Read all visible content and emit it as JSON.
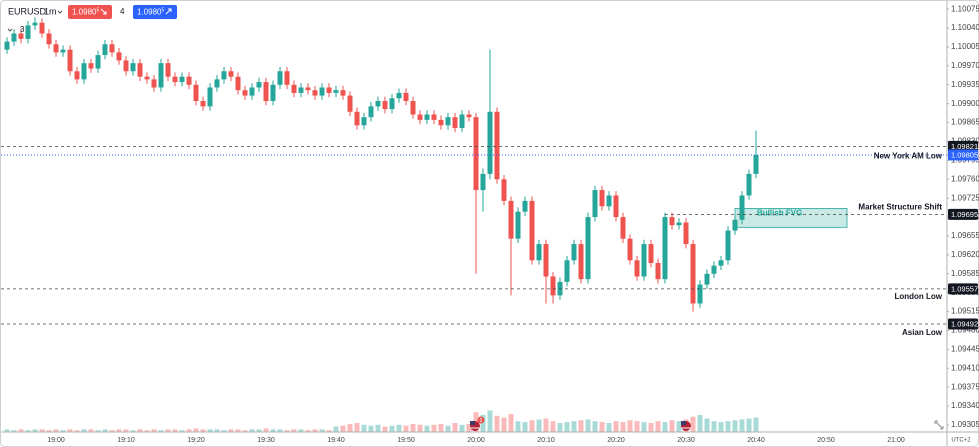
{
  "header": {
    "symbol": "EURUSD",
    "interval": "1m",
    "sell": "1.0980",
    "sell_pip": "5",
    "spread": "4",
    "buy": "1.0980",
    "buy_pip": "5",
    "indicators": "3"
  },
  "footer": {
    "timezone": "UTC+2",
    "event_badge": "2"
  },
  "chart_data": {
    "type": "candlestick",
    "categories": [
      null,
      null,
      null,
      null,
      null,
      null,
      null,
      "19:00",
      null,
      null,
      null,
      null,
      null,
      null,
      null,
      null,
      null,
      "19:10",
      null,
      null,
      null,
      null,
      null,
      null,
      null,
      null,
      null,
      "19:20",
      null,
      null,
      null,
      null,
      null,
      null,
      null,
      null,
      null,
      "19:30",
      null,
      null,
      null,
      null,
      null,
      null,
      null,
      null,
      null,
      "19:40",
      null,
      null,
      null,
      null,
      null,
      null,
      null,
      null,
      null,
      "19:50",
      null,
      null,
      null,
      null,
      null,
      null,
      null,
      null,
      null,
      "20:00",
      null,
      null,
      null,
      null,
      null,
      null,
      null,
      null,
      null,
      "20:10",
      null,
      null,
      null,
      null,
      null,
      null,
      null,
      null,
      null,
      "20:20",
      null,
      null,
      null,
      null,
      null,
      null,
      null,
      null,
      null,
      "20:30",
      null,
      null,
      null,
      null,
      null,
      null,
      null,
      null,
      null,
      "20:40",
      null,
      null,
      null,
      null,
      null,
      null,
      null,
      null,
      null,
      "20:50",
      null,
      null,
      null,
      null,
      null,
      null,
      null,
      null,
      null,
      "21:00"
    ],
    "open": [
      1.1,
      1.10015,
      1.1003,
      1.1002,
      1.10045,
      1.1005,
      1.1003,
      1.1001,
      1.09995,
      1.1,
      1.0996,
      1.09945,
      1.09975,
      1.09965,
      1.0999,
      1.1001,
      1.09995,
      1.0998,
      1.0996,
      1.09975,
      1.0995,
      1.09945,
      1.0993,
      1.09975,
      1.0995,
      1.0994,
      1.0995,
      1.09935,
      1.09905,
      1.09895,
      1.0993,
      1.09945,
      1.0996,
      1.0995,
      1.09925,
      1.09915,
      1.0993,
      1.0994,
      1.09905,
      1.09935,
      1.0996,
      1.09935,
      1.0992,
      1.0993,
      1.09925,
      1.09915,
      1.0993,
      1.0992,
      1.09925,
      1.09915,
      1.09885,
      1.0986,
      1.09875,
      1.09895,
      1.09905,
      1.0989,
      1.0991,
      1.0992,
      1.09905,
      1.0988,
      1.0987,
      1.0988,
      1.0987,
      1.0986,
      1.09875,
      1.09855,
      1.0988,
      1.09875,
      1.0974,
      1.0977,
      1.09885,
      1.0976,
      1.0972,
      1.0965,
      1.097,
      1.0972,
      1.0961,
      1.0964,
      1.0958,
      1.09545,
      1.0957,
      1.0961,
      1.0964,
      1.09575,
      1.0969,
      1.0974,
      1.0971,
      1.0973,
      1.0969,
      1.0965,
      1.0961,
      1.0958,
      1.0964,
      1.09605,
      1.09575,
      1.0969,
      1.09675,
      1.0968,
      1.0964,
      1.0953,
      1.09565,
      1.09585,
      1.096,
      1.0961,
      1.09665,
      1.09685,
      1.0973,
      1.0977,
      null,
      null,
      null,
      null,
      null,
      null,
      null,
      null,
      null,
      null,
      null,
      null,
      null,
      null,
      null,
      null,
      null,
      null,
      null,
      null
    ],
    "high": [
      1.10023,
      1.10038,
      1.10038,
      1.10053,
      1.1006,
      1.10058,
      1.10038,
      1.10018,
      1.10008,
      1.10008,
      1.09968,
      1.09983,
      1.09983,
      1.09998,
      1.10018,
      1.10018,
      1.10003,
      1.09988,
      1.09983,
      1.09983,
      1.09958,
      1.09953,
      1.09983,
      1.09983,
      1.09958,
      1.09958,
      1.09958,
      1.09943,
      1.09913,
      1.09938,
      1.09953,
      1.09968,
      1.09968,
      1.09958,
      1.09933,
      1.09938,
      1.09948,
      1.09948,
      1.09943,
      1.09968,
      1.09968,
      1.09943,
      1.09938,
      1.09938,
      1.09933,
      1.09938,
      1.09938,
      1.09933,
      1.09933,
      1.09923,
      1.09893,
      1.09883,
      1.09903,
      1.09913,
      1.09913,
      1.09918,
      1.09928,
      1.09928,
      1.09913,
      1.09888,
      1.09888,
      1.09888,
      1.09878,
      1.09883,
      1.09883,
      1.09888,
      1.09888,
      1.09883,
      1.0978,
      1.1,
      1.09893,
      1.09768,
      1.09728,
      1.09708,
      1.09728,
      1.09728,
      1.09648,
      1.09648,
      1.09588,
      1.09578,
      1.09618,
      1.09648,
      1.09648,
      1.09698,
      1.09748,
      1.09748,
      1.09738,
      1.09738,
      1.09698,
      1.09658,
      1.09618,
      1.09648,
      1.09648,
      1.09613,
      1.09698,
      1.09698,
      1.09688,
      1.09688,
      1.09648,
      1.09573,
      1.09593,
      1.09608,
      1.09618,
      1.09673,
      1.09693,
      1.09738,
      1.09778,
      1.0985,
      null,
      null,
      null,
      null,
      null,
      null,
      null,
      null,
      null,
      null,
      null,
      null,
      null,
      null,
      null,
      null,
      null,
      null,
      null,
      null
    ],
    "low": [
      1.09992,
      1.10007,
      1.10012,
      1.10012,
      1.10037,
      1.10022,
      1.10002,
      1.09987,
      1.09987,
      1.09952,
      1.09937,
      1.09937,
      1.09957,
      1.09957,
      1.09982,
      1.09987,
      1.09972,
      1.09952,
      1.09952,
      1.09942,
      1.09937,
      1.09922,
      1.09922,
      1.09942,
      1.09932,
      1.09932,
      1.09927,
      1.09897,
      1.09887,
      1.09887,
      1.09922,
      1.09937,
      1.09942,
      1.09917,
      1.09907,
      1.09907,
      1.09922,
      1.09897,
      1.09897,
      1.09927,
      1.09927,
      1.09912,
      1.09912,
      1.09917,
      1.09907,
      1.09907,
      1.09912,
      1.09912,
      1.09907,
      1.09877,
      1.09852,
      1.09852,
      1.09867,
      1.09887,
      1.09882,
      1.09882,
      1.09902,
      1.09897,
      1.09872,
      1.09862,
      1.09862,
      1.09862,
      1.09852,
      1.09852,
      1.09847,
      1.09847,
      1.09867,
      1.09585,
      1.097,
      1.0976,
      1.09752,
      1.09712,
      1.09545,
      1.09642,
      1.09692,
      1.09602,
      1.09602,
      1.0953,
      1.0953,
      1.09537,
      1.09562,
      1.09602,
      1.09567,
      1.09567,
      1.09682,
      1.09702,
      1.09702,
      1.09682,
      1.09642,
      1.09602,
      1.09572,
      1.09572,
      1.09597,
      1.09567,
      1.09567,
      1.09667,
      1.09667,
      1.09632,
      1.09515,
      1.09522,
      1.09557,
      1.09577,
      1.09592,
      1.09602,
      1.09657,
      1.09677,
      1.09722,
      1.09762,
      null,
      null,
      null,
      null,
      null,
      null,
      null,
      null,
      null,
      null,
      null,
      null,
      null,
      null,
      null,
      null,
      null,
      null,
      null,
      null
    ],
    "close": [
      1.10015,
      1.1003,
      1.1002,
      1.10045,
      1.1005,
      1.1003,
      1.1001,
      1.09995,
      1.1,
      1.0996,
      1.09945,
      1.09975,
      1.09965,
      1.0999,
      1.1001,
      1.09995,
      1.0998,
      1.0996,
      1.09975,
      1.0995,
      1.09945,
      1.0993,
      1.09975,
      1.0995,
      1.0994,
      1.0995,
      1.09935,
      1.09905,
      1.09895,
      1.0993,
      1.09945,
      1.0996,
      1.0995,
      1.09925,
      1.09915,
      1.0993,
      1.0994,
      1.09905,
      1.09935,
      1.0996,
      1.09935,
      1.0992,
      1.0993,
      1.09925,
      1.09915,
      1.0993,
      1.0992,
      1.09925,
      1.09915,
      1.09885,
      1.0986,
      1.09875,
      1.09895,
      1.09905,
      1.0989,
      1.0991,
      1.0992,
      1.09905,
      1.0988,
      1.0987,
      1.0988,
      1.0987,
      1.0986,
      1.09875,
      1.09855,
      1.0988,
      1.09875,
      1.0974,
      1.0977,
      1.09885,
      1.0976,
      1.0972,
      1.0965,
      1.097,
      1.0972,
      1.0961,
      1.0964,
      1.0958,
      1.09545,
      1.0957,
      1.0961,
      1.0964,
      1.09575,
      1.0969,
      1.0974,
      1.0971,
      1.0973,
      1.0969,
      1.0965,
      1.0961,
      1.0958,
      1.0964,
      1.09605,
      1.09575,
      1.0969,
      1.09675,
      1.0968,
      1.0964,
      1.0953,
      1.09565,
      1.09585,
      1.096,
      1.0961,
      1.09665,
      1.09685,
      1.0973,
      1.0977,
      1.09805,
      null,
      null,
      null,
      null,
      null,
      null,
      null,
      null,
      null,
      null,
      null,
      null,
      null,
      null,
      null,
      null,
      null,
      null,
      null,
      null
    ],
    "volume": [
      3,
      2,
      3,
      2,
      3,
      3,
      2,
      3,
      2,
      3,
      2,
      3,
      3,
      2,
      3,
      2,
      3,
      3,
      2,
      3,
      2,
      3,
      2,
      3,
      3,
      2,
      3,
      4,
      3,
      3,
      3,
      2,
      3,
      3,
      2,
      3,
      3,
      4,
      3,
      3,
      2,
      3,
      3,
      2,
      3,
      3,
      2,
      6,
      7,
      9,
      10,
      8,
      7,
      8,
      6,
      7,
      8,
      7,
      9,
      8,
      7,
      8,
      9,
      7,
      10,
      8,
      9,
      22,
      19,
      24,
      18,
      16,
      20,
      12,
      11,
      13,
      14,
      15,
      12,
      10,
      11,
      12,
      13,
      14,
      12,
      11,
      10,
      12,
      11,
      13,
      12,
      11,
      10,
      12,
      11,
      13,
      12,
      14,
      17,
      19,
      15,
      12,
      11,
      12,
      13,
      14,
      15,
      16,
      null,
      null,
      null,
      null,
      null,
      null,
      null,
      null,
      null,
      null,
      null,
      null,
      null,
      null,
      null,
      null,
      null,
      null,
      null,
      null
    ],
    "up_color": "#26a69a",
    "down_color": "#ef5350",
    "ylim": [
      1.09292,
      1.10092
    ],
    "yticks": [
      1.10075,
      {
        "value": 1.1004,
        "label": "1.10040"
      },
      1.10005,
      {
        "value": 1.0997,
        "label": "1.09970"
      },
      1.09935,
      {
        "value": 1.099,
        "label": "1.09900"
      },
      1.09865,
      {
        "value": 1.0983,
        "label": "1.09830"
      },
      1.09795,
      {
        "value": 1.0976,
        "label": "1.09760"
      },
      1.09725,
      {
        "value": 1.0969,
        "label": "1.09690"
      },
      1.09655,
      {
        "value": 1.0962,
        "label": "1.09620"
      },
      1.09585,
      {
        "value": 1.0955,
        "label": "1.09550"
      },
      1.09515,
      {
        "value": 1.0948,
        "label": "1.09480"
      },
      1.09445,
      {
        "value": 1.0941,
        "label": "1.09410"
      },
      1.09375,
      {
        "value": 1.0934,
        "label": "1.09340"
      },
      1.09305
    ],
    "grid": false,
    "levels": [
      {
        "name": "New York AM Low",
        "value": 1.09821
      },
      {
        "name": "Market Structure Shift",
        "value": 1.09695
      },
      {
        "name": "London Low",
        "value": 1.09557
      },
      {
        "name": "Asian Low",
        "value": 1.09492
      }
    ],
    "last_price": 1.09805,
    "last_price_color": "#2962ff",
    "fvg": {
      "label": "Bullish FVG",
      "top": 1.09706,
      "bottom": 1.09671,
      "color": "#26a69a"
    }
  }
}
